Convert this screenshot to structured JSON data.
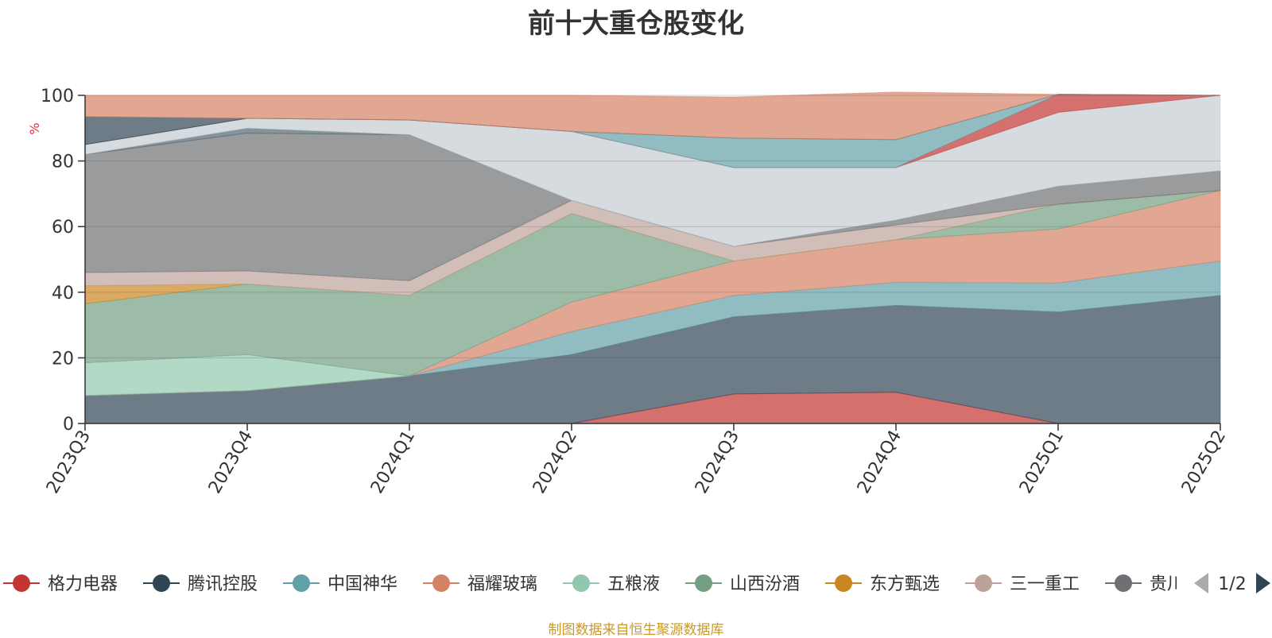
{
  "chart_data": {
    "type": "area",
    "stacked": true,
    "title": "前十大重仓股变化",
    "ylabel": "%",
    "ylim": [
      0,
      100
    ],
    "yticks": [
      0,
      20,
      40,
      60,
      80,
      100
    ],
    "grid": true,
    "categories": [
      "2023Q3",
      "2023Q4",
      "2024Q1",
      "2024Q2",
      "2024Q3",
      "2024Q4",
      "2025Q1",
      "2025Q2"
    ],
    "series": [
      {
        "name": "格力电器",
        "color": "#c23531",
        "values": [
          0,
          0,
          0,
          0,
          9,
          9.5,
          0,
          0
        ]
      },
      {
        "name": "腾讯控股",
        "color": "#2f4554",
        "values": [
          8.5,
          10,
          14.5,
          21,
          23.5,
          26.5,
          34,
          39
        ]
      },
      {
        "name": "中国神华",
        "color": "#61a0a8",
        "values": [
          0,
          0,
          0,
          7,
          6.5,
          7,
          8.8,
          10.5
        ]
      },
      {
        "name": "福耀玻璃",
        "color": "#d48265",
        "values": [
          0,
          0,
          0,
          9,
          10.5,
          13,
          16.5,
          21.5
        ]
      },
      {
        "name": "五粮液",
        "color": "#91c7ae",
        "values": [
          10,
          11,
          0,
          0,
          0,
          0,
          0,
          0
        ]
      },
      {
        "name": "山西汾酒",
        "color": "#749f83",
        "values": [
          18,
          21.5,
          24.5,
          27,
          0,
          0,
          7.5,
          0
        ]
      },
      {
        "name": "东方甄选",
        "color": "#ca8622",
        "values": [
          5.5,
          0,
          0,
          0,
          0,
          0,
          0,
          0
        ]
      },
      {
        "name": "三一重工",
        "color": "#bda29a",
        "values": [
          4,
          4,
          4.5,
          4,
          4.5,
          4.5,
          0,
          0
        ]
      },
      {
        "name": "贵州茅台",
        "color": "#6e7074",
        "values": [
          36,
          42,
          44.5,
          0,
          0,
          1.5,
          5.5,
          6
        ]
      },
      {
        "name": "",
        "color": "#546570",
        "values": [
          0,
          1.5,
          0,
          0,
          0,
          0,
          0,
          0
        ]
      },
      {
        "name": "",
        "color": "#c4ccd3",
        "values": [
          3,
          3,
          4.5,
          21,
          24,
          16,
          22.5,
          23
        ]
      },
      {
        "name": "",
        "color": "#c23531",
        "values": [
          0,
          0,
          0,
          0,
          0,
          0,
          5.5,
          0
        ]
      },
      {
        "name": "",
        "color": "#61a0a8",
        "values": [
          0,
          0,
          0,
          0,
          9,
          8.5,
          0,
          0
        ]
      },
      {
        "name": "",
        "color": "#2f4554",
        "values": [
          8.5,
          0,
          0,
          0,
          0,
          0,
          0,
          0
        ]
      },
      {
        "name": "",
        "color": "#d48265",
        "values": [
          6.5,
          7,
          7.5,
          11,
          12.5,
          14.5,
          0,
          0
        ]
      }
    ],
    "legend": {
      "position": "bottom",
      "page": "1/2",
      "items": [
        "格力电器",
        "腾讯控股",
        "中国神华",
        "福耀玻璃",
        "五粮液",
        "山西汾酒",
        "东方甄选",
        "三一重工",
        "贵州茅台"
      ],
      "visible_labels": [
        "格力电器",
        "腾讯控股",
        "中国神华",
        "福耀玻璃",
        "五粮液",
        "山西汾酒",
        "东方甄选",
        "三一重工",
        "贵川"
      ]
    }
  },
  "footer": "制图数据来自恒生聚源数据库"
}
